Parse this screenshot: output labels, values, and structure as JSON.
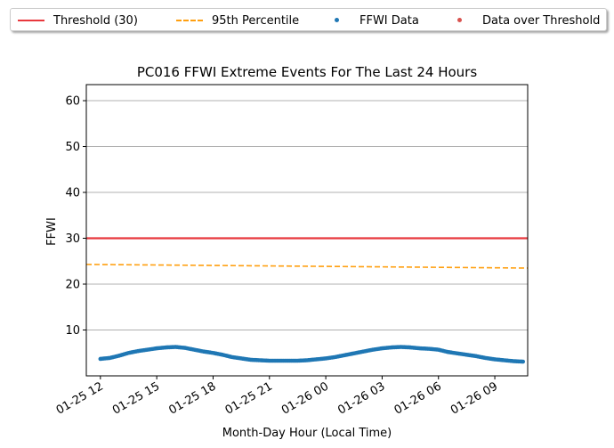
{
  "chart_data": {
    "type": "line",
    "title": "PC016 FFWI Extreme Events For The Last 24 Hours",
    "xlabel": "Month-Day Hour (Local Time)",
    "ylabel": "FFWI",
    "ylim": [
      0,
      63.5
    ],
    "yticks": [
      10,
      20,
      30,
      40,
      50,
      60
    ],
    "xlim_hours": [
      -0.75,
      22.75
    ],
    "xticks": [
      {
        "hour": 0,
        "label": "01-25 12"
      },
      {
        "hour": 3,
        "label": "01-25 15"
      },
      {
        "hour": 6,
        "label": "01-25 18"
      },
      {
        "hour": 9,
        "label": "01-25 21"
      },
      {
        "hour": 12,
        "label": "01-26 00"
      },
      {
        "hour": 15,
        "label": "01-26 03"
      },
      {
        "hour": 18,
        "label": "01-26 06"
      },
      {
        "hour": 21,
        "label": "01-26 09"
      }
    ],
    "grid": "y",
    "legend_position": "top, outside",
    "colors": {
      "threshold": "#e8383d",
      "percentile": "#ff9f0f",
      "data": "#1f77b4",
      "over": "#d9534f"
    },
    "series": [
      {
        "name": "Threshold (30)",
        "style": "solid-line",
        "x": [
          -0.75,
          22.75
        ],
        "y": [
          30,
          30
        ]
      },
      {
        "name": "95th Percentile",
        "style": "dashed-line",
        "x": [
          -0.75,
          22.75
        ],
        "y": [
          24.3,
          23.5
        ]
      },
      {
        "name": "FFWI Data",
        "style": "points",
        "x": [
          0,
          0.5,
          1,
          1.5,
          2,
          2.5,
          3,
          3.5,
          4,
          4.5,
          5,
          5.5,
          6,
          6.5,
          7,
          7.5,
          8,
          8.5,
          9,
          9.5,
          10,
          10.5,
          11,
          11.5,
          12,
          12.5,
          13,
          13.5,
          14,
          14.5,
          15,
          15.5,
          16,
          16.5,
          17,
          17.5,
          18,
          18.5,
          19,
          19.5,
          20,
          20.5,
          21,
          21.5,
          22,
          22.5
        ],
        "y": [
          3.7,
          3.9,
          4.4,
          5.0,
          5.4,
          5.7,
          6.0,
          6.2,
          6.3,
          6.1,
          5.7,
          5.3,
          5.0,
          4.6,
          4.1,
          3.8,
          3.5,
          3.4,
          3.3,
          3.3,
          3.3,
          3.3,
          3.4,
          3.6,
          3.8,
          4.1,
          4.5,
          4.9,
          5.3,
          5.7,
          6.0,
          6.2,
          6.3,
          6.2,
          6.0,
          5.9,
          5.7,
          5.2,
          4.9,
          4.6,
          4.3,
          3.9,
          3.6,
          3.4,
          3.2,
          3.1
        ]
      },
      {
        "name": "Data over Threshold",
        "style": "points",
        "x": [],
        "y": []
      }
    ]
  }
}
